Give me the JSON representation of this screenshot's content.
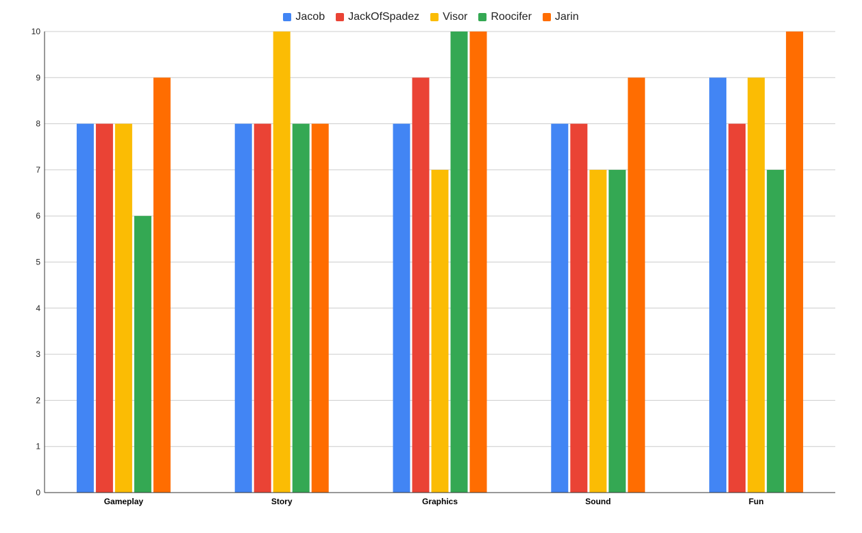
{
  "chart_data": {
    "type": "bar",
    "categories": [
      "Gameplay",
      "Story",
      "Graphics",
      "Sound",
      "Fun"
    ],
    "series": [
      {
        "name": "Jacob",
        "color": "#4285f4",
        "values": [
          8,
          8,
          8,
          8,
          9
        ]
      },
      {
        "name": "JackOfSpadez",
        "color": "#ea4335",
        "values": [
          8,
          8,
          9,
          8,
          8
        ]
      },
      {
        "name": "Visor",
        "color": "#fbbc04",
        "values": [
          8,
          10,
          7,
          7,
          9
        ]
      },
      {
        "name": "Roocifer",
        "color": "#34a853",
        "values": [
          6,
          8,
          10,
          7,
          7
        ]
      },
      {
        "name": "Jarin",
        "color": "#ff6d01",
        "values": [
          9,
          8,
          10,
          9,
          10
        ]
      }
    ],
    "yticks": [
      0,
      1,
      2,
      3,
      4,
      5,
      6,
      7,
      8,
      9,
      10
    ],
    "ylim": [
      0,
      10
    ],
    "grid": true,
    "legend_position": "top-center",
    "title": "",
    "xlabel": "",
    "ylabel": ""
  }
}
